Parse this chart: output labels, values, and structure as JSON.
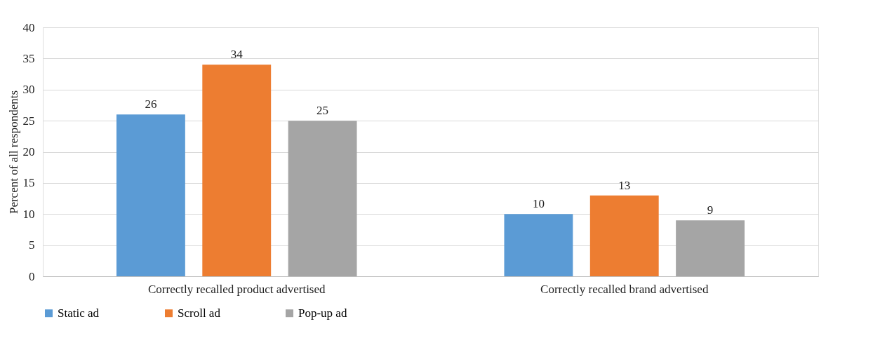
{
  "chart_data": {
    "type": "bar",
    "ylabel": "Percent of all respondents",
    "categories": [
      "Correctly recalled product advertised",
      "Correctly recalled brand advertised"
    ],
    "series": [
      {
        "name": "Static ad",
        "color": "#5b9bd5",
        "values": [
          26,
          10
        ]
      },
      {
        "name": "Scroll ad",
        "color": "#ed7d31",
        "values": [
          34,
          13
        ]
      },
      {
        "name": "Pop-up ad",
        "color": "#a5a5a5",
        "values": [
          25,
          9
        ]
      }
    ],
    "ylim": [
      0,
      40
    ],
    "yticks": [
      0,
      5,
      10,
      15,
      20,
      25,
      30,
      35,
      40
    ],
    "grid": "y",
    "legend": "bottom",
    "data_labels": true
  }
}
